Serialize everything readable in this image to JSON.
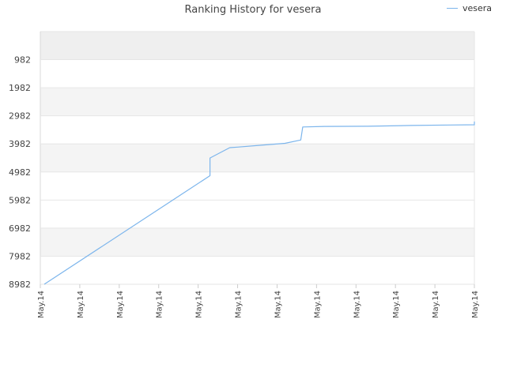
{
  "chart_data": {
    "type": "line",
    "title": "Ranking History for vesera",
    "xlabel": "",
    "ylabel": "",
    "y_reversed": true,
    "ylim": [
      8982,
      -18
    ],
    "yticks": [
      982,
      1982,
      2982,
      3982,
      4982,
      5982,
      6982,
      7982,
      8982
    ],
    "xticks": [
      "May.14",
      "May.14",
      "May.14",
      "May.14",
      "May.14",
      "May.14",
      "May.14",
      "May.14",
      "May.14",
      "May.14",
      "May.14",
      "May.14"
    ],
    "x_range": [
      0,
      11
    ],
    "grid": true,
    "legend_position": "top-right",
    "colors": {
      "line": "#7cb5ec",
      "band_a": "#efefef",
      "band_b": "#f4f4f4",
      "band_c": "#ffffff",
      "gridline": "#e6e6e6"
    },
    "series": [
      {
        "name": "vesera",
        "points": [
          [
            0.1,
            8982
          ],
          [
            4.3,
            5116
          ],
          [
            4.3,
            4486
          ],
          [
            4.8,
            4115
          ],
          [
            5.0,
            4098
          ],
          [
            5.6,
            4029
          ],
          [
            6.2,
            3962
          ],
          [
            6.6,
            3843
          ],
          [
            6.65,
            3380
          ],
          [
            7.2,
            3359
          ],
          [
            8.3,
            3353
          ],
          [
            9.4,
            3327
          ],
          [
            10.4,
            3309
          ],
          [
            11,
            3300
          ],
          [
            11,
            3186
          ]
        ]
      }
    ]
  }
}
